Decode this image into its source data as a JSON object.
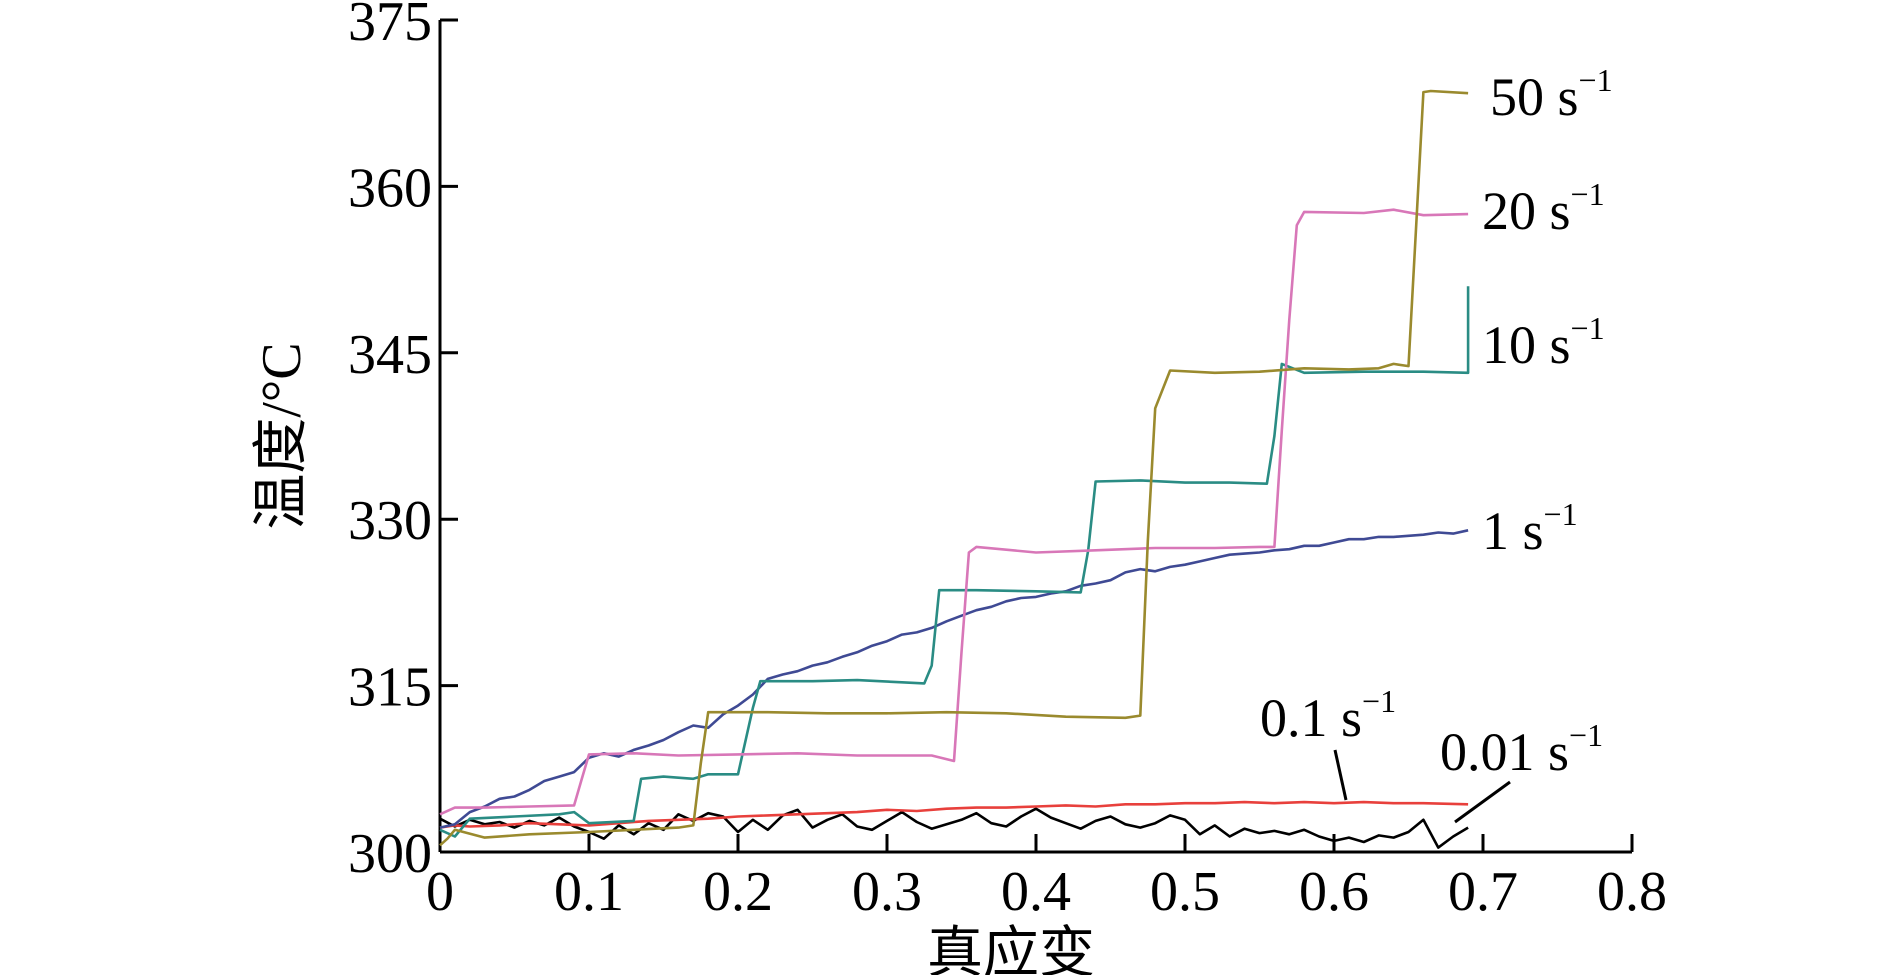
{
  "chart_data": {
    "type": "line",
    "title": "",
    "xlabel": "真应变",
    "ylabel": "温度/°C",
    "xlim": [
      0,
      0.8
    ],
    "ylim": [
      300,
      375
    ],
    "x_ticks": [
      "0",
      "0.1",
      "0.2",
      "0.3",
      "0.4",
      "0.5",
      "0.6",
      "0.7",
      "0.8"
    ],
    "y_ticks": [
      "300",
      "315",
      "330",
      "345",
      "360",
      "375"
    ],
    "grid": false,
    "legend": "inline labels at right end of curves",
    "series": [
      {
        "name": "0.01 s",
        "exponent": "−1",
        "color": "#000000",
        "points": [
          [
            0,
            303
          ],
          [
            0.01,
            302.3
          ],
          [
            0.02,
            302.9
          ],
          [
            0.03,
            302.5
          ],
          [
            0.04,
            302.7
          ],
          [
            0.05,
            302.2
          ],
          [
            0.06,
            302.8
          ],
          [
            0.07,
            302.4
          ],
          [
            0.08,
            303.1
          ],
          [
            0.09,
            302.3
          ],
          [
            0.1,
            301.8
          ],
          [
            0.11,
            301.2
          ],
          [
            0.12,
            302.4
          ],
          [
            0.13,
            301.6
          ],
          [
            0.14,
            302.6
          ],
          [
            0.15,
            302.0
          ],
          [
            0.16,
            303.4
          ],
          [
            0.17,
            302.8
          ],
          [
            0.18,
            303.5
          ],
          [
            0.19,
            303.2
          ],
          [
            0.2,
            301.8
          ],
          [
            0.21,
            302.9
          ],
          [
            0.22,
            302.0
          ],
          [
            0.23,
            303.3
          ],
          [
            0.24,
            303.8
          ],
          [
            0.25,
            302.2
          ],
          [
            0.26,
            302.9
          ],
          [
            0.27,
            303.4
          ],
          [
            0.28,
            302.3
          ],
          [
            0.29,
            302.0
          ],
          [
            0.3,
            302.8
          ],
          [
            0.31,
            303.6
          ],
          [
            0.32,
            302.7
          ],
          [
            0.33,
            302.1
          ],
          [
            0.34,
            302.5
          ],
          [
            0.35,
            302.9
          ],
          [
            0.36,
            303.5
          ],
          [
            0.37,
            302.6
          ],
          [
            0.38,
            302.3
          ],
          [
            0.39,
            303.2
          ],
          [
            0.4,
            303.9
          ],
          [
            0.41,
            303.1
          ],
          [
            0.42,
            302.6
          ],
          [
            0.43,
            302.1
          ],
          [
            0.44,
            302.8
          ],
          [
            0.45,
            303.2
          ],
          [
            0.46,
            302.5
          ],
          [
            0.47,
            302.2
          ],
          [
            0.48,
            302.6
          ],
          [
            0.49,
            303.3
          ],
          [
            0.5,
            302.9
          ],
          [
            0.51,
            301.6
          ],
          [
            0.52,
            302.4
          ],
          [
            0.53,
            301.4
          ],
          [
            0.54,
            302.1
          ],
          [
            0.55,
            301.7
          ],
          [
            0.56,
            301.9
          ],
          [
            0.57,
            301.6
          ],
          [
            0.58,
            302.0
          ],
          [
            0.59,
            301.4
          ],
          [
            0.6,
            301.0
          ],
          [
            0.61,
            301.3
          ],
          [
            0.62,
            300.9
          ],
          [
            0.63,
            301.5
          ],
          [
            0.64,
            301.3
          ],
          [
            0.65,
            301.8
          ],
          [
            0.66,
            302.9
          ],
          [
            0.67,
            300.4
          ],
          [
            0.68,
            301.4
          ],
          [
            0.69,
            302.2
          ]
        ]
      },
      {
        "name": "0.1 s",
        "exponent": "−1",
        "color": "#e8403c",
        "points": [
          [
            0,
            302.2
          ],
          [
            0.01,
            302.4
          ],
          [
            0.02,
            302.3
          ],
          [
            0.04,
            302.4
          ],
          [
            0.06,
            302.6
          ],
          [
            0.08,
            302.5
          ],
          [
            0.1,
            302.4
          ],
          [
            0.12,
            302.6
          ],
          [
            0.14,
            302.8
          ],
          [
            0.16,
            302.9
          ],
          [
            0.18,
            303.0
          ],
          [
            0.2,
            303.2
          ],
          [
            0.22,
            303.3
          ],
          [
            0.24,
            303.4
          ],
          [
            0.26,
            303.5
          ],
          [
            0.28,
            303.6
          ],
          [
            0.3,
            303.8
          ],
          [
            0.32,
            303.7
          ],
          [
            0.34,
            303.9
          ],
          [
            0.36,
            304.0
          ],
          [
            0.38,
            304.0
          ],
          [
            0.4,
            304.1
          ],
          [
            0.42,
            304.2
          ],
          [
            0.44,
            304.1
          ],
          [
            0.46,
            304.3
          ],
          [
            0.48,
            304.3
          ],
          [
            0.5,
            304.4
          ],
          [
            0.52,
            304.4
          ],
          [
            0.54,
            304.5
          ],
          [
            0.56,
            304.4
          ],
          [
            0.58,
            304.5
          ],
          [
            0.6,
            304.4
          ],
          [
            0.62,
            304.5
          ],
          [
            0.64,
            304.4
          ],
          [
            0.66,
            304.4
          ],
          [
            0.69,
            304.3
          ]
        ]
      },
      {
        "name": "1 s",
        "exponent": "−1",
        "color": "#3f4a94",
        "points": [
          [
            0,
            302.2
          ],
          [
            0.01,
            302.5
          ],
          [
            0.02,
            303.6
          ],
          [
            0.03,
            304.1
          ],
          [
            0.04,
            304.8
          ],
          [
            0.05,
            305.0
          ],
          [
            0.06,
            305.6
          ],
          [
            0.07,
            306.4
          ],
          [
            0.08,
            306.8
          ],
          [
            0.09,
            307.2
          ],
          [
            0.1,
            308.5
          ],
          [
            0.11,
            308.9
          ],
          [
            0.12,
            308.6
          ],
          [
            0.13,
            309.2
          ],
          [
            0.14,
            309.6
          ],
          [
            0.15,
            310.1
          ],
          [
            0.16,
            310.8
          ],
          [
            0.17,
            311.4
          ],
          [
            0.18,
            311.2
          ],
          [
            0.19,
            312.4
          ],
          [
            0.2,
            313.2
          ],
          [
            0.21,
            314.2
          ],
          [
            0.22,
            315.6
          ],
          [
            0.23,
            316.0
          ],
          [
            0.24,
            316.3
          ],
          [
            0.25,
            316.8
          ],
          [
            0.26,
            317.1
          ],
          [
            0.27,
            317.6
          ],
          [
            0.28,
            318.0
          ],
          [
            0.29,
            318.6
          ],
          [
            0.3,
            319.0
          ],
          [
            0.31,
            319.6
          ],
          [
            0.32,
            319.8
          ],
          [
            0.33,
            320.2
          ],
          [
            0.34,
            320.8
          ],
          [
            0.35,
            321.3
          ],
          [
            0.36,
            321.8
          ],
          [
            0.37,
            322.1
          ],
          [
            0.38,
            322.6
          ],
          [
            0.39,
            322.9
          ],
          [
            0.4,
            323.0
          ],
          [
            0.41,
            323.3
          ],
          [
            0.42,
            323.5
          ],
          [
            0.43,
            324.0
          ],
          [
            0.44,
            324.2
          ],
          [
            0.45,
            324.5
          ],
          [
            0.46,
            325.2
          ],
          [
            0.47,
            325.5
          ],
          [
            0.48,
            325.3
          ],
          [
            0.49,
            325.7
          ],
          [
            0.5,
            325.9
          ],
          [
            0.51,
            326.2
          ],
          [
            0.52,
            326.5
          ],
          [
            0.53,
            326.8
          ],
          [
            0.54,
            326.9
          ],
          [
            0.55,
            327.0
          ],
          [
            0.56,
            327.2
          ],
          [
            0.57,
            327.3
          ],
          [
            0.58,
            327.6
          ],
          [
            0.59,
            327.6
          ],
          [
            0.6,
            327.9
          ],
          [
            0.61,
            328.2
          ],
          [
            0.62,
            328.2
          ],
          [
            0.63,
            328.4
          ],
          [
            0.64,
            328.4
          ],
          [
            0.65,
            328.5
          ],
          [
            0.66,
            328.6
          ],
          [
            0.67,
            328.8
          ],
          [
            0.68,
            328.7
          ],
          [
            0.69,
            329.0
          ]
        ]
      },
      {
        "name": "10 s",
        "exponent": "−1",
        "color": "#2a8c84",
        "points": [
          [
            0,
            302.0
          ],
          [
            0.01,
            301.4
          ],
          [
            0.02,
            303.0
          ],
          [
            0.05,
            303.2
          ],
          [
            0.08,
            303.4
          ],
          [
            0.09,
            303.6
          ],
          [
            0.1,
            302.6
          ],
          [
            0.13,
            302.8
          ],
          [
            0.135,
            306.6
          ],
          [
            0.15,
            306.8
          ],
          [
            0.17,
            306.6
          ],
          [
            0.18,
            307.0
          ],
          [
            0.2,
            307.0
          ],
          [
            0.21,
            313.0
          ],
          [
            0.215,
            315.4
          ],
          [
            0.25,
            315.4
          ],
          [
            0.28,
            315.5
          ],
          [
            0.31,
            315.3
          ],
          [
            0.325,
            315.2
          ],
          [
            0.33,
            316.8
          ],
          [
            0.335,
            323.6
          ],
          [
            0.36,
            323.6
          ],
          [
            0.4,
            323.5
          ],
          [
            0.43,
            323.4
          ],
          [
            0.435,
            327.2
          ],
          [
            0.44,
            333.4
          ],
          [
            0.47,
            333.5
          ],
          [
            0.5,
            333.3
          ],
          [
            0.53,
            333.3
          ],
          [
            0.555,
            333.2
          ],
          [
            0.56,
            337.5
          ],
          [
            0.565,
            344.0
          ],
          [
            0.58,
            343.2
          ],
          [
            0.62,
            343.3
          ],
          [
            0.66,
            343.3
          ],
          [
            0.69,
            343.2
          ],
          [
            0.69,
            351.0
          ]
        ]
      },
      {
        "name": "20 s",
        "exponent": "−1",
        "color": "#d877b8",
        "points": [
          [
            0,
            303.4
          ],
          [
            0.01,
            304.0
          ],
          [
            0.03,
            304.0
          ],
          [
            0.06,
            304.1
          ],
          [
            0.09,
            304.2
          ],
          [
            0.095,
            306.5
          ],
          [
            0.1,
            308.8
          ],
          [
            0.13,
            308.9
          ],
          [
            0.16,
            308.7
          ],
          [
            0.2,
            308.8
          ],
          [
            0.24,
            308.9
          ],
          [
            0.28,
            308.7
          ],
          [
            0.33,
            308.7
          ],
          [
            0.345,
            308.2
          ],
          [
            0.35,
            318.0
          ],
          [
            0.355,
            327.0
          ],
          [
            0.36,
            327.5
          ],
          [
            0.4,
            327.0
          ],
          [
            0.44,
            327.2
          ],
          [
            0.48,
            327.4
          ],
          [
            0.52,
            327.4
          ],
          [
            0.55,
            327.5
          ],
          [
            0.56,
            327.5
          ],
          [
            0.565,
            338.0
          ],
          [
            0.57,
            348.0
          ],
          [
            0.575,
            356.5
          ],
          [
            0.58,
            357.7
          ],
          [
            0.62,
            357.6
          ],
          [
            0.64,
            357.9
          ],
          [
            0.66,
            357.4
          ],
          [
            0.69,
            357.5
          ]
        ]
      },
      {
        "name": "50 s",
        "exponent": "−1",
        "color": "#9a8a2e",
        "points": [
          [
            0,
            300.6
          ],
          [
            0.005,
            301.2
          ],
          [
            0.01,
            302.0
          ],
          [
            0.03,
            301.3
          ],
          [
            0.06,
            301.6
          ],
          [
            0.1,
            301.8
          ],
          [
            0.13,
            302.0
          ],
          [
            0.16,
            302.2
          ],
          [
            0.17,
            302.4
          ],
          [
            0.175,
            308.0
          ],
          [
            0.18,
            312.6
          ],
          [
            0.22,
            312.6
          ],
          [
            0.26,
            312.5
          ],
          [
            0.3,
            312.5
          ],
          [
            0.34,
            312.6
          ],
          [
            0.38,
            312.5
          ],
          [
            0.42,
            312.2
          ],
          [
            0.46,
            312.1
          ],
          [
            0.47,
            312.3
          ],
          [
            0.475,
            328.0
          ],
          [
            0.48,
            340.0
          ],
          [
            0.49,
            343.4
          ],
          [
            0.52,
            343.2
          ],
          [
            0.55,
            343.3
          ],
          [
            0.58,
            343.6
          ],
          [
            0.61,
            343.5
          ],
          [
            0.63,
            343.6
          ],
          [
            0.64,
            344.0
          ],
          [
            0.65,
            343.8
          ],
          [
            0.655,
            356.0
          ],
          [
            0.66,
            368.5
          ],
          [
            0.665,
            368.6
          ],
          [
            0.69,
            368.4
          ]
        ]
      }
    ],
    "labels": [
      {
        "text": "50 s",
        "sup": "−1"
      },
      {
        "text": "20 s",
        "sup": "−1"
      },
      {
        "text": "10 s",
        "sup": "−1"
      },
      {
        "text": "1 s",
        "sup": "−1"
      },
      {
        "text": "0.1 s",
        "sup": "−1"
      },
      {
        "text": "0.01 s",
        "sup": "−1"
      }
    ]
  }
}
